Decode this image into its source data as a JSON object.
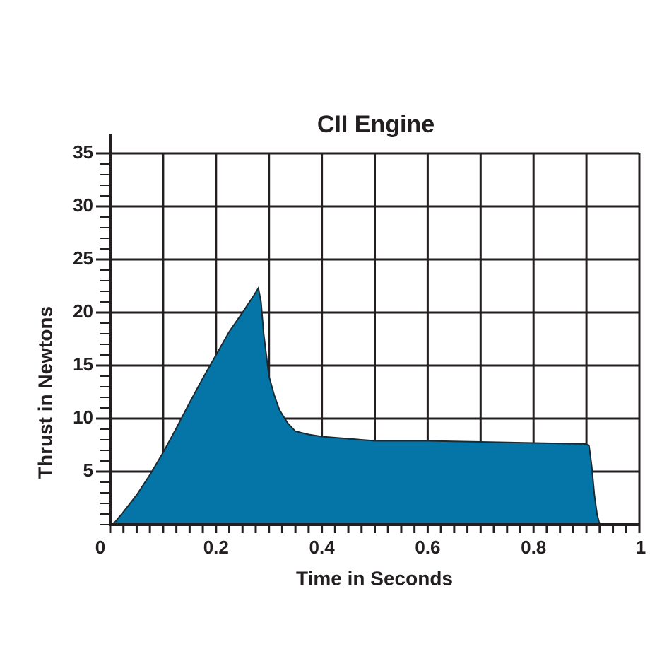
{
  "chart_data": {
    "type": "area",
    "title": "CII Engine",
    "x_label": "Time in Seconds",
    "y_label": "Thrust in Newtons",
    "x": [
      0.005,
      0.025,
      0.05,
      0.075,
      0.1,
      0.125,
      0.15,
      0.175,
      0.2,
      0.225,
      0.25,
      0.27,
      0.28,
      0.285,
      0.29,
      0.3,
      0.31,
      0.32,
      0.335,
      0.35,
      0.375,
      0.4,
      0.45,
      0.5,
      0.6,
      0.7,
      0.8,
      0.9,
      0.905,
      0.91,
      0.915,
      0.92,
      0.925
    ],
    "values": [
      0,
      1.2,
      2.8,
      4.7,
      6.8,
      9.1,
      11.5,
      13.8,
      16,
      18.2,
      20,
      21.5,
      22.3,
      21,
      18,
      14,
      12.2,
      10.8,
      9.6,
      8.8,
      8.5,
      8.3,
      8.1,
      7.9,
      7.9,
      7.8,
      7.7,
      7.6,
      7.4,
      5.5,
      2.8,
      1,
      0
    ],
    "color": "#0575a8",
    "xlim": [
      0,
      1
    ],
    "xticks": [
      0,
      0.2,
      0.4,
      0.6,
      0.8,
      1
    ],
    "xgrid": [
      0.1,
      0.3,
      0.5,
      0.7,
      0.9
    ],
    "ylim": [
      0,
      35
    ],
    "yticks": [
      5,
      10,
      15,
      20,
      25,
      30,
      35
    ],
    "x_minor_step": 0.025,
    "y_minor_step": 1,
    "grid": true
  }
}
